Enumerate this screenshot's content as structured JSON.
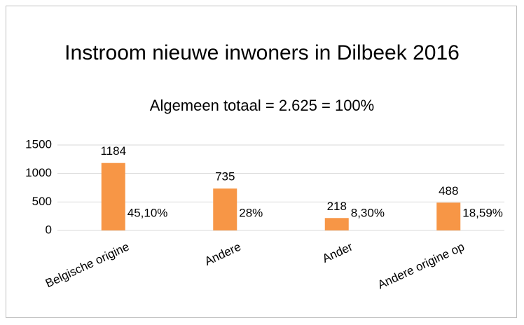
{
  "chart_data": {
    "type": "bar",
    "title": "Instroom nieuwe inwoners in Dilbeek 2016",
    "subtitle": "Algemeen totaal = 2.625  = 100%",
    "categories": [
      "Belgische origine",
      "Andere",
      "Ander",
      "Andere origine op"
    ],
    "values": [
      1184,
      735,
      218,
      488
    ],
    "annotations": [
      "45,10%",
      "28%",
      "8,30%",
      "18,59%"
    ],
    "color": "#f79646",
    "ylim": [
      0,
      1500
    ],
    "yticks": [
      0,
      500,
      1000,
      1500
    ],
    "grid": true
  }
}
